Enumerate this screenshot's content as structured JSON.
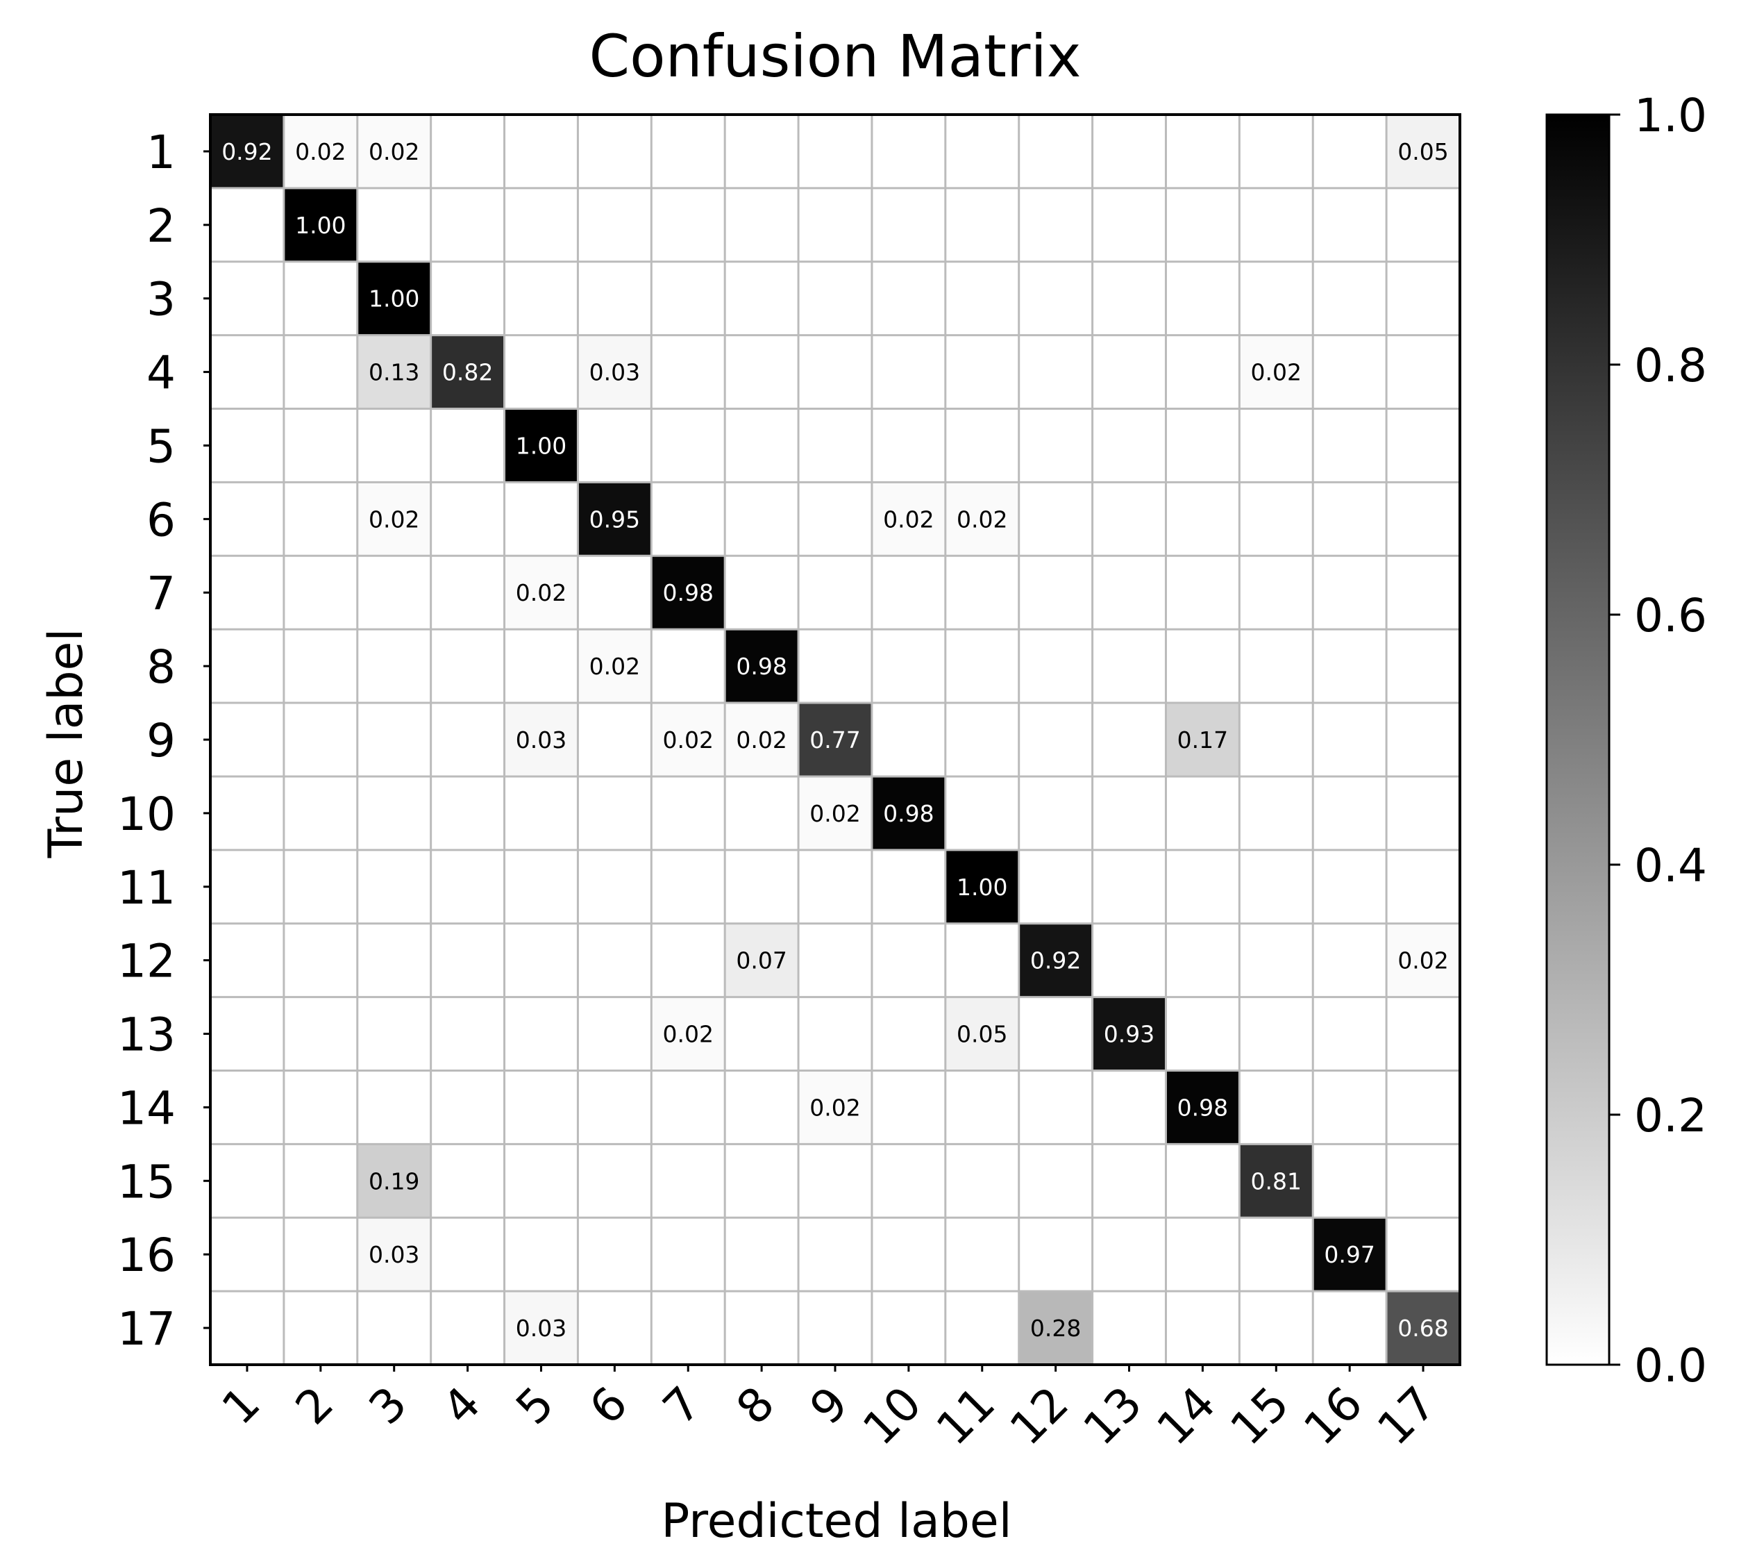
{
  "chart_data": {
    "type": "heatmap",
    "title": "Confusion Matrix",
    "xlabel": "Predicted label",
    "ylabel": "True label",
    "x_categories": [
      "1",
      "2",
      "3",
      "4",
      "5",
      "6",
      "7",
      "8",
      "9",
      "10",
      "11",
      "12",
      "13",
      "14",
      "15",
      "16",
      "17"
    ],
    "y_categories": [
      "1",
      "2",
      "3",
      "4",
      "5",
      "6",
      "7",
      "8",
      "9",
      "10",
      "11",
      "12",
      "13",
      "14",
      "15",
      "16",
      "17"
    ],
    "cells": [
      {
        "row": "1",
        "col": "1",
        "value": 0.92
      },
      {
        "row": "1",
        "col": "2",
        "value": 0.02
      },
      {
        "row": "1",
        "col": "3",
        "value": 0.02
      },
      {
        "row": "1",
        "col": "17",
        "value": 0.05
      },
      {
        "row": "2",
        "col": "2",
        "value": 1.0
      },
      {
        "row": "3",
        "col": "3",
        "value": 1.0
      },
      {
        "row": "4",
        "col": "3",
        "value": 0.13
      },
      {
        "row": "4",
        "col": "4",
        "value": 0.82
      },
      {
        "row": "4",
        "col": "6",
        "value": 0.03
      },
      {
        "row": "4",
        "col": "15",
        "value": 0.02
      },
      {
        "row": "5",
        "col": "5",
        "value": 1.0
      },
      {
        "row": "6",
        "col": "3",
        "value": 0.02
      },
      {
        "row": "6",
        "col": "6",
        "value": 0.95
      },
      {
        "row": "6",
        "col": "10",
        "value": 0.02
      },
      {
        "row": "6",
        "col": "11",
        "value": 0.02
      },
      {
        "row": "7",
        "col": "5",
        "value": 0.02
      },
      {
        "row": "7",
        "col": "7",
        "value": 0.98
      },
      {
        "row": "8",
        "col": "6",
        "value": 0.02
      },
      {
        "row": "8",
        "col": "8",
        "value": 0.98
      },
      {
        "row": "9",
        "col": "5",
        "value": 0.03
      },
      {
        "row": "9",
        "col": "7",
        "value": 0.02
      },
      {
        "row": "9",
        "col": "8",
        "value": 0.02
      },
      {
        "row": "9",
        "col": "9",
        "value": 0.77
      },
      {
        "row": "9",
        "col": "14",
        "value": 0.17
      },
      {
        "row": "10",
        "col": "9",
        "value": 0.02
      },
      {
        "row": "10",
        "col": "10",
        "value": 0.98
      },
      {
        "row": "11",
        "col": "11",
        "value": 1.0
      },
      {
        "row": "12",
        "col": "8",
        "value": 0.07
      },
      {
        "row": "12",
        "col": "12",
        "value": 0.92
      },
      {
        "row": "12",
        "col": "17",
        "value": 0.02
      },
      {
        "row": "13",
        "col": "7",
        "value": 0.02
      },
      {
        "row": "13",
        "col": "11",
        "value": 0.05
      },
      {
        "row": "13",
        "col": "13",
        "value": 0.93
      },
      {
        "row": "14",
        "col": "9",
        "value": 0.02
      },
      {
        "row": "14",
        "col": "14",
        "value": 0.98
      },
      {
        "row": "15",
        "col": "3",
        "value": 0.19
      },
      {
        "row": "15",
        "col": "15",
        "value": 0.81
      },
      {
        "row": "16",
        "col": "3",
        "value": 0.03
      },
      {
        "row": "16",
        "col": "16",
        "value": 0.97
      },
      {
        "row": "17",
        "col": "5",
        "value": 0.03
      },
      {
        "row": "17",
        "col": "12",
        "value": 0.28
      },
      {
        "row": "17",
        "col": "17",
        "value": 0.68
      }
    ],
    "value_format": "0.00",
    "colormap": "greys",
    "color_low": "#ffffff",
    "color_high": "#000000",
    "colorbar": {
      "range": [
        0.0,
        1.0
      ],
      "ticks": [
        0.0,
        0.2,
        0.4,
        0.6,
        0.8,
        1.0
      ],
      "tick_labels": [
        "0.0",
        "0.2",
        "0.4",
        "0.6",
        "0.8",
        "1.0"
      ]
    },
    "grid": true,
    "grid_color": "#bbbbbb",
    "x_tick_rotation": 45
  }
}
